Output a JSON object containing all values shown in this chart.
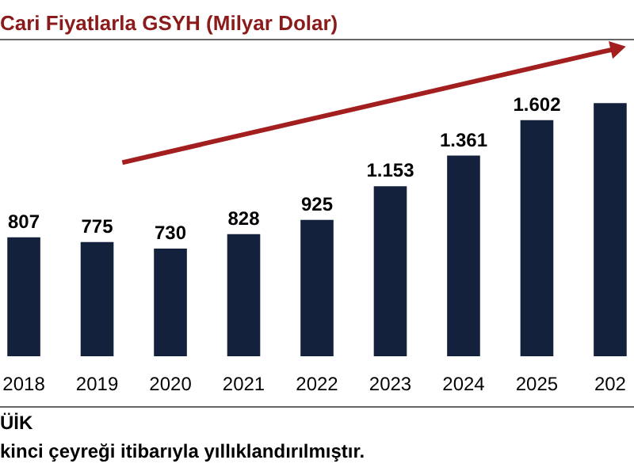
{
  "chart_data": {
    "type": "bar",
    "title": "Cari Fiyatlarla GSYH (Milyar Dolar)",
    "categories": [
      "2018",
      "2019",
      "2020",
      "2021",
      "2022",
      "2023",
      "2024",
      "2025",
      "202"
    ],
    "values": [
      807,
      775,
      730,
      828,
      925,
      1153,
      1361,
      1602,
      1717
    ],
    "value_labels": [
      "807",
      "775",
      "730",
      "828",
      "925",
      "1.153",
      "1.361",
      "1.602",
      null
    ],
    "color": "#14213d",
    "annotations": [
      "ÜİK",
      "kinci çeyreği itibarıyla yıllıklandırılmıştır."
    ]
  }
}
